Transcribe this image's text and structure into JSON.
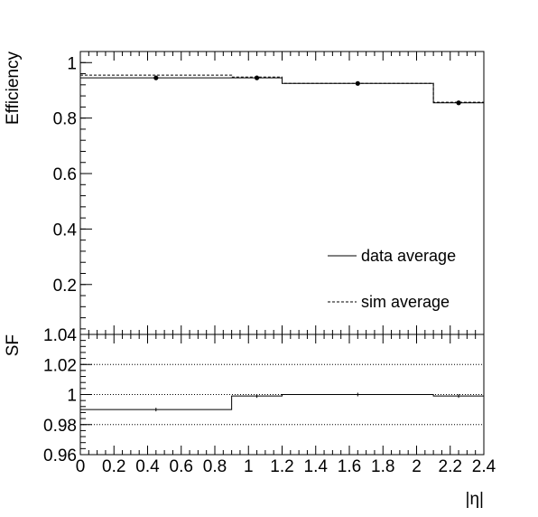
{
  "chart_data": [
    {
      "type": "line",
      "panel": "efficiency",
      "ylabel": "Efficiency",
      "xlim": [
        0,
        2.4
      ],
      "ylim": [
        0.02,
        1.04
      ],
      "yticks": [
        0.2,
        0.4,
        0.6,
        0.8,
        1
      ],
      "ytick_labels": [
        "0.2",
        "0.4",
        "0.6",
        "0.8",
        "1"
      ],
      "bin_edges": [
        0,
        0.9,
        1.2,
        2.1,
        2.4
      ],
      "series": [
        {
          "name": "data average",
          "style": "solid",
          "values": [
            0.945,
            0.945,
            0.925,
            0.855
          ]
        },
        {
          "name": "sim average",
          "style": "dashed",
          "values": [
            0.955,
            0.948,
            0.925,
            0.857
          ]
        }
      ],
      "points": {
        "x": [
          0.45,
          1.05,
          1.65,
          2.25
        ],
        "y": [
          0.945,
          0.945,
          0.925,
          0.855
        ]
      },
      "legend_position": "bottom-right"
    },
    {
      "type": "line",
      "panel": "ratio",
      "ylabel": "SF",
      "xlabel": "|η|",
      "xlim": [
        0,
        2.4
      ],
      "ylim": [
        0.96,
        1.04
      ],
      "yticks": [
        0.96,
        0.98,
        1,
        1.02,
        1.04
      ],
      "ytick_labels": [
        "0.96",
        "0.98",
        "1",
        "1.02",
        "1.04"
      ],
      "xticks": [
        0,
        0.2,
        0.4,
        0.6,
        0.8,
        1,
        1.2,
        1.4,
        1.6,
        1.8,
        2,
        2.2,
        2.4
      ],
      "xtick_labels": [
        "0",
        "0.2",
        "0.4",
        "0.6",
        "0.8",
        "1",
        "1.2",
        "1.4",
        "1.6",
        "1.8",
        "2",
        "2.2",
        "2.4"
      ],
      "gridlines_y": [
        0.98,
        1,
        1.02
      ],
      "bin_edges": [
        0,
        0.9,
        1.2,
        2.1,
        2.4
      ],
      "values": [
        0.99,
        0.999,
        1.0,
        0.999
      ]
    }
  ]
}
